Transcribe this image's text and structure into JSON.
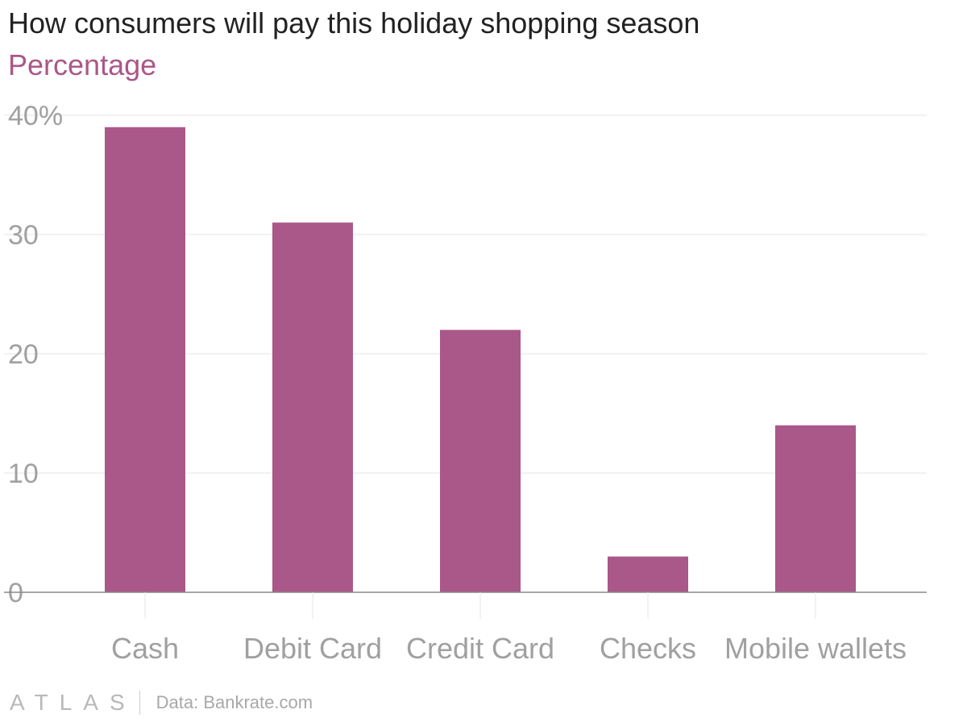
{
  "title": "How consumers will pay this holiday shopping season",
  "subtitle": "Percentage",
  "chart_data": {
    "type": "bar",
    "categories": [
      "Cash",
      "Debit Card",
      "Credit Card",
      "Checks",
      "Mobile wallets"
    ],
    "values": [
      39,
      31,
      22,
      3,
      14
    ],
    "yticks": [
      "0",
      "10",
      "20",
      "30",
      "40%"
    ],
    "ylim": [
      0,
      40
    ],
    "grid": true,
    "bar_color": "#aa5789"
  },
  "footer": {
    "brand": "ATLAS",
    "source": "Data: Bankrate.com"
  }
}
